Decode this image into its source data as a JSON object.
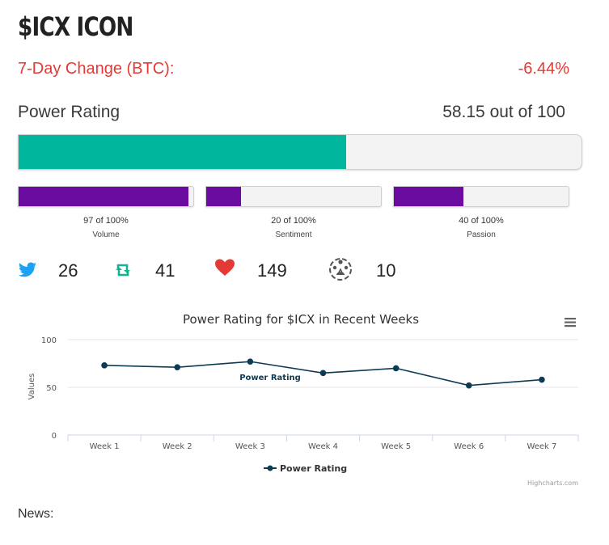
{
  "header": {
    "title": "$ICX ICON"
  },
  "change": {
    "label": "7-Day Change (BTC):",
    "value": "-6.44%"
  },
  "power_rating": {
    "label": "Power Rating",
    "value_text": "58.15 out of 100",
    "value": 58.15
  },
  "metrics": [
    {
      "value_text": "97 of 100%",
      "label": "Volume",
      "value": 97
    },
    {
      "value_text": "20 of 100%",
      "label": "Sentiment",
      "value": 20
    },
    {
      "value_text": "40 of 100%",
      "label": "Passion",
      "value": 40
    }
  ],
  "social": [
    {
      "icon": "twitter-icon",
      "count": "26"
    },
    {
      "icon": "retweet-icon",
      "count": "41"
    },
    {
      "icon": "heart-icon",
      "count": "149"
    },
    {
      "icon": "community-icon",
      "count": "10"
    }
  ],
  "colors": {
    "accent_red": "#e53935",
    "rating_fill": "#00b79e",
    "metric_fill": "#6a0ca0",
    "line": "#0d3b53"
  },
  "chart_data": {
    "type": "line",
    "title": "Power Rating for $ICX in Recent Weeks",
    "ylabel": "Values",
    "xlabel": "",
    "categories": [
      "Week 1",
      "Week 2",
      "Week 3",
      "Week 4",
      "Week 5",
      "Week 6",
      "Week 7"
    ],
    "series": [
      {
        "name": "Power Rating",
        "values": [
          73,
          71,
          77,
          65,
          70,
          52,
          58
        ]
      }
    ],
    "ylim": [
      0,
      100
    ],
    "yticks": [
      "0",
      "50",
      "100"
    ],
    "grid": true,
    "legend": "bottom-center",
    "data_label": "Power Rating",
    "credits": "Highcharts.com"
  },
  "news": {
    "label": "News:"
  }
}
